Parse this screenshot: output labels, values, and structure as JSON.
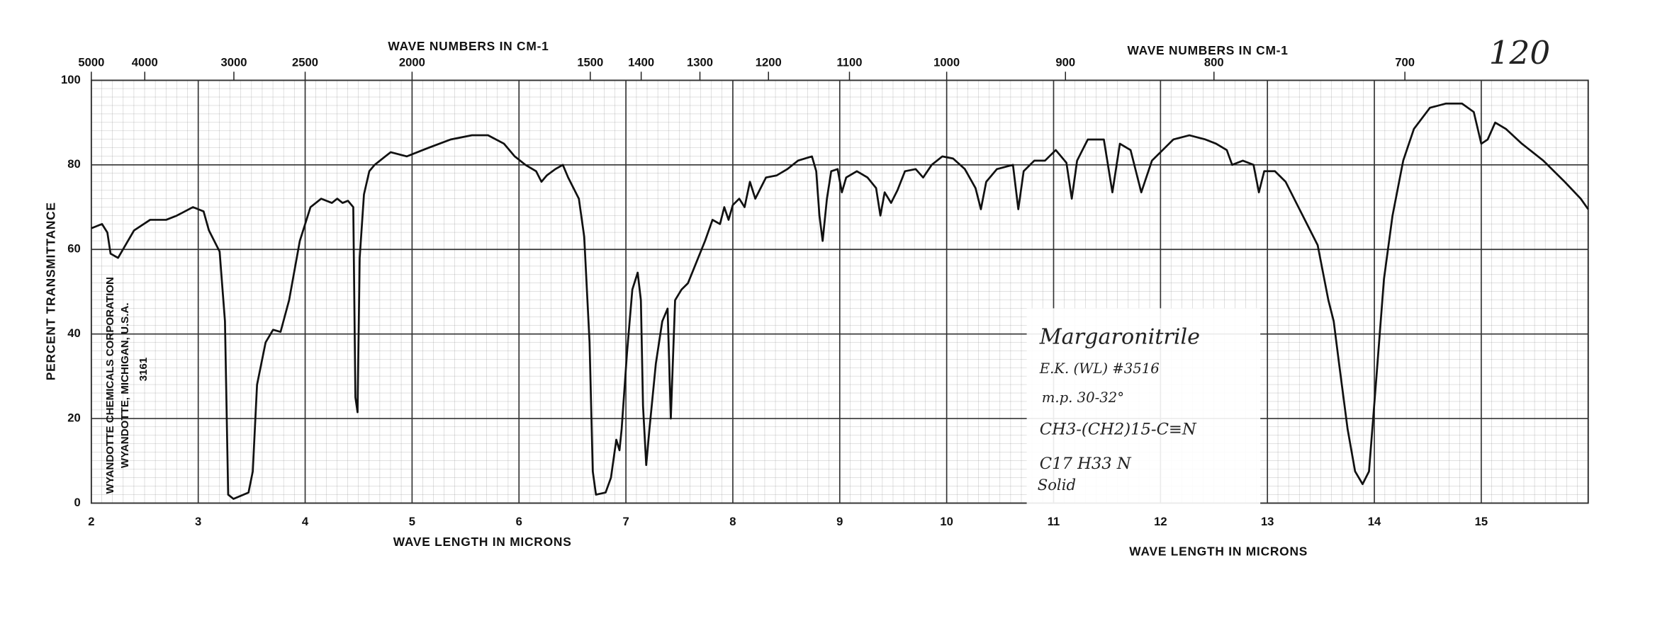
{
  "chart_data": {
    "type": "line",
    "ylabel": "PERCENT TRANSMITTANCE",
    "x_labels": [
      "WAVE LENGTH IN MICRONS",
      "WAVE LENGTH IN MICRONS"
    ],
    "x2_labels": [
      "WAVE NUMBERS IN CM-1",
      "WAVE NUMBERS IN CM-1"
    ],
    "annotations": [
      "120",
      "Margaronitrile",
      "E.K. (WL) #3516",
      "m.p. 30-32°",
      "CH3-(CH2)15-C≡N",
      "C17 H33 N",
      "Solid",
      "WYANDOTTE CHEMICALS CORPORATION",
      "WYANDOTTE, MICHIGAN, U.S.A.",
      "3161"
    ],
    "xlim": [
      2,
      16
    ],
    "xticks": [
      2,
      3,
      4,
      5,
      6,
      7,
      8,
      9,
      10,
      11,
      12,
      13,
      14,
      15
    ],
    "x2ticks": [
      5000,
      4000,
      3000,
      2500,
      2000,
      1500,
      1400,
      1300,
      1200,
      1100,
      1000,
      900,
      800,
      700
    ],
    "ylim": [
      0,
      100
    ],
    "yticks": [
      0,
      20,
      40,
      60,
      80,
      100
    ],
    "grid": true,
    "x": [
      2.0,
      2.1,
      2.15,
      2.18,
      2.25,
      2.4,
      2.55,
      2.7,
      2.8,
      2.95,
      3.05,
      3.1,
      3.2,
      3.25,
      3.28,
      3.33,
      3.47,
      3.51,
      3.55,
      3.63,
      3.7,
      3.77,
      3.85,
      3.95,
      4.05,
      4.15,
      4.25,
      4.3,
      4.35,
      4.4,
      4.45,
      4.47,
      4.49,
      4.51,
      4.55,
      4.6,
      4.65,
      4.75,
      4.8,
      4.95,
      5.15,
      5.36,
      5.56,
      5.71,
      5.86,
      5.96,
      6.06,
      6.16,
      6.21,
      6.26,
      6.34,
      6.41,
      6.46,
      6.56,
      6.61,
      6.66,
      6.69,
      6.72,
      6.81,
      6.86,
      6.91,
      6.94,
      6.96,
      7.01,
      7.06,
      7.11,
      7.14,
      7.16,
      7.19,
      7.22,
      7.28,
      7.34,
      7.39,
      7.42,
      7.46,
      7.52,
      7.58,
      7.66,
      7.74,
      7.81,
      7.88,
      7.92,
      7.96,
      8.0,
      8.06,
      8.11,
      8.16,
      8.21,
      8.26,
      8.31,
      8.41,
      8.51,
      8.61,
      8.74,
      8.78,
      8.81,
      8.84,
      8.88,
      8.92,
      8.98,
      9.02,
      9.06,
      9.16,
      9.26,
      9.34,
      9.38,
      9.42,
      9.48,
      9.54,
      9.61,
      9.71,
      9.78,
      9.86,
      9.96,
      10.06,
      10.17,
      10.27,
      10.32,
      10.37,
      10.47,
      10.62,
      10.67,
      10.72,
      10.82,
      10.92,
      11.02,
      11.12,
      11.17,
      11.22,
      11.32,
      11.47,
      11.55,
      11.62,
      11.72,
      11.82,
      11.92,
      12.02,
      12.12,
      12.27,
      12.42,
      12.52,
      12.62,
      12.67,
      12.77,
      12.87,
      12.92,
      12.97,
      13.07,
      13.17,
      13.27,
      13.37,
      13.47,
      13.57,
      13.62,
      13.67,
      13.75,
      13.82,
      13.89,
      13.95,
      14.02,
      14.09,
      14.17,
      14.27,
      14.37,
      14.52,
      14.67,
      14.82,
      14.93,
      15.0,
      15.06,
      15.13,
      15.23,
      15.38,
      15.58,
      15.78,
      15.93,
      16.0
    ],
    "series": [
      {
        "color": "#111111",
        "values": [
          65,
          66,
          64,
          59,
          58,
          64.5,
          67,
          67,
          68,
          70,
          69,
          64.5,
          59.5,
          43,
          2,
          1,
          2.5,
          7.5,
          28,
          38,
          41,
          40.5,
          48,
          62,
          70,
          72,
          71,
          72,
          71,
          71.5,
          70,
          25,
          21.5,
          58,
          73,
          78.5,
          80,
          82,
          83,
          82,
          84,
          86,
          87,
          87,
          85,
          82,
          80,
          78.5,
          76,
          77.5,
          79,
          80,
          77,
          72,
          63,
          38,
          7.5,
          2,
          2.5,
          6,
          15,
          12.5,
          17.5,
          35.5,
          50.5,
          54.5,
          48,
          23,
          9,
          17.5,
          33,
          43,
          46,
          20,
          48,
          50.5,
          52,
          57,
          62,
          67,
          66,
          70,
          67,
          70.5,
          72,
          70,
          76,
          72,
          74.5,
          77,
          77.5,
          79,
          81,
          82,
          78.5,
          68,
          62,
          72,
          78.5,
          79,
          73.5,
          77,
          78.5,
          77,
          74.5,
          68,
          73.5,
          71,
          74,
          78.5,
          79,
          77,
          80,
          82,
          81.5,
          79,
          74.5,
          69.5,
          76,
          79,
          80,
          69.5,
          78.5,
          81,
          81,
          83.5,
          80.5,
          72,
          81,
          86,
          86,
          73.5,
          85,
          83.5,
          73.5,
          81,
          83.5,
          86,
          87,
          86,
          85,
          83.5,
          80,
          81,
          80,
          73.5,
          78.5,
          78.5,
          76,
          71,
          66,
          61,
          48,
          43,
          33,
          17.5,
          7.5,
          4.5,
          7.5,
          30,
          53,
          68,
          81,
          88.5,
          93.5,
          94.5,
          94.5,
          92.5,
          85,
          86,
          90,
          88.5,
          85,
          81,
          76,
          72,
          69.5
        ]
      }
    ]
  }
}
